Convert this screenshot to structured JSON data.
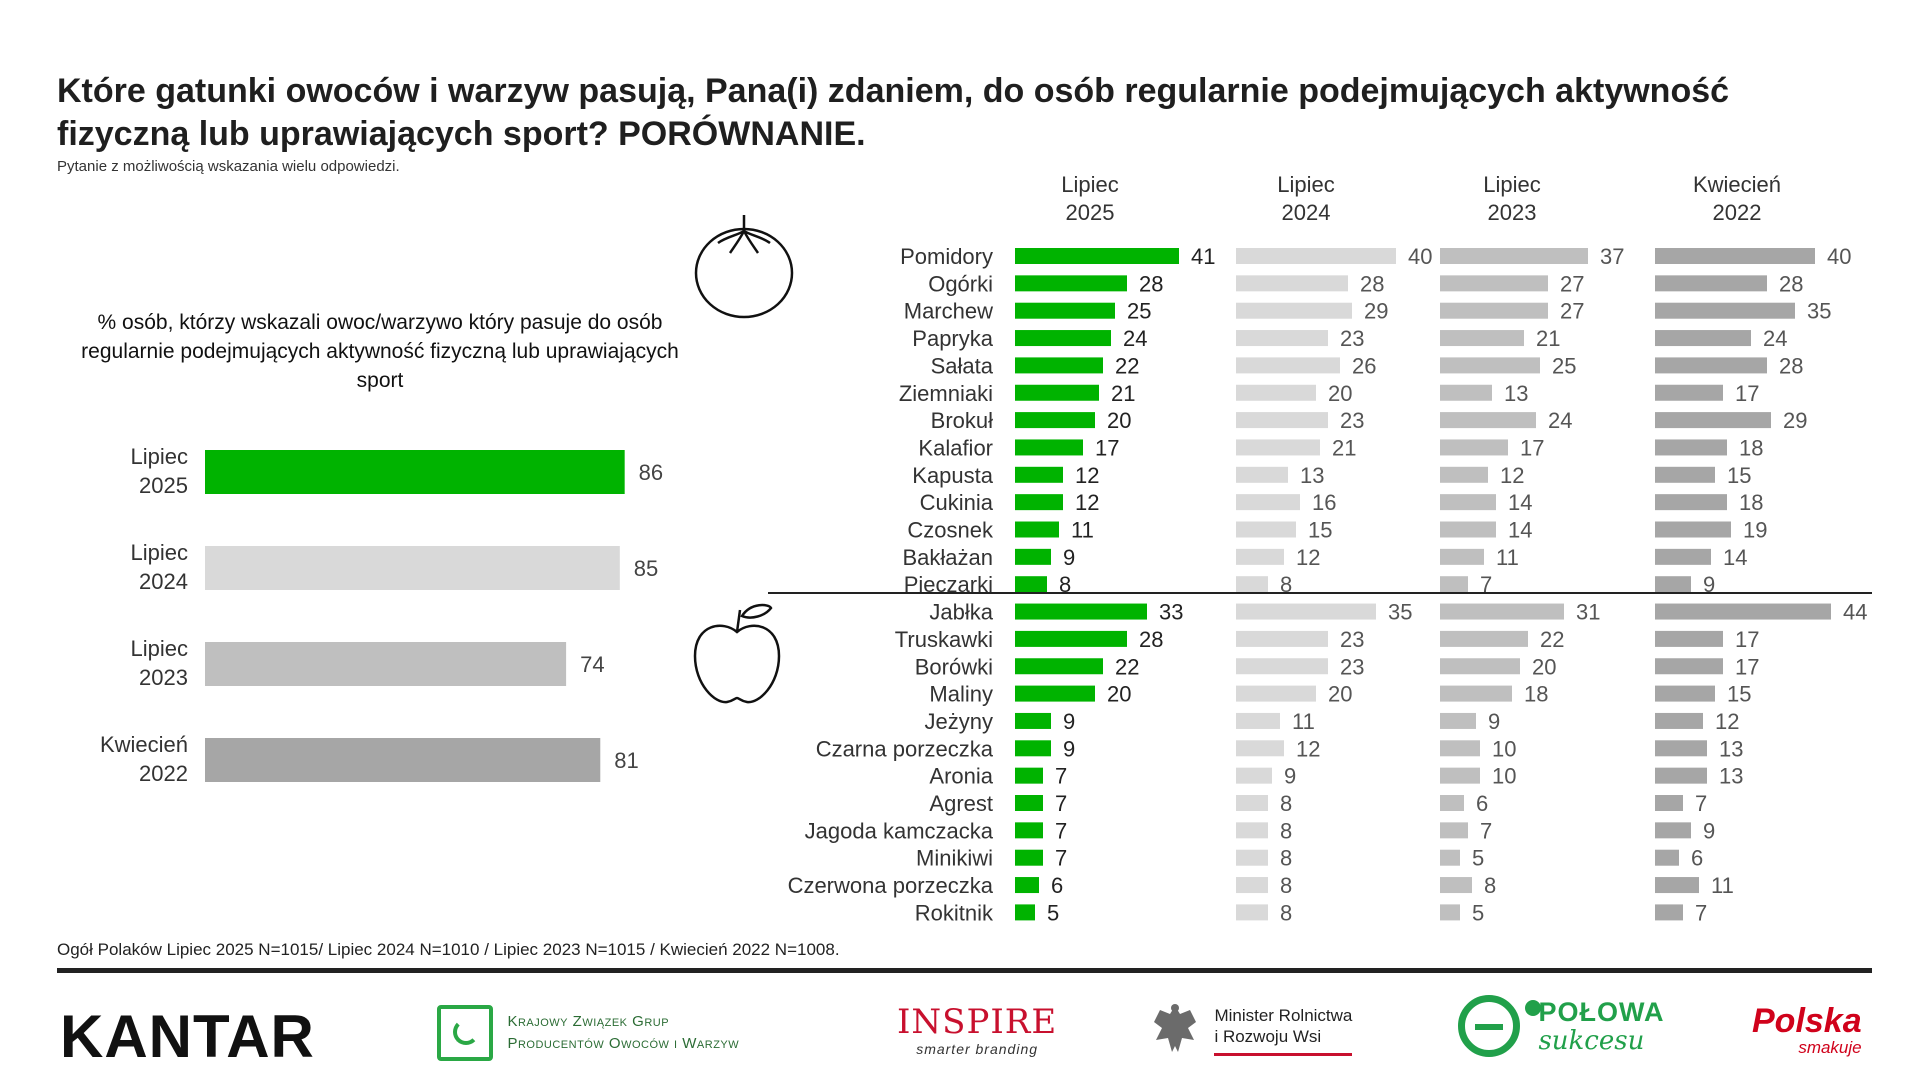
{
  "title": "Które gatunki owoców i warzyw pasują, Pana(i) zdaniem, do osób regularnie podejmujących aktywność fizyczną lub uprawiających sport? PORÓWNANIE.",
  "subtitle": "Pytanie z możliwością wskazania wielu odpowiedzi.",
  "left_description": "% osób, którzy wskazali owoc/warzywo który pasuje do osób regularnie podejmujących aktywność fizyczną lub uprawiających sport",
  "footnote": "Ogół Polaków Lipiec 2025 N=1015/ Lipiec 2024 N=1010 / Lipiec 2023 N=1015 / Kwiecień 2022 N=1008.",
  "colors": {
    "green": "#00b300",
    "light_gray": "#d9d9d9",
    "mid_gray": "#bfbfbf",
    "dark_gray": "#a6a6a6"
  },
  "icons": {
    "vegetables": "tomato-icon",
    "fruits": "apple-icon"
  },
  "logos": {
    "kantar": "KANTAR",
    "kzgp": [
      "Krajowy Związek Grup",
      "Producentów Owoców i Warzyw"
    ],
    "inspire": [
      "INSPIRE",
      "smarter branding"
    ],
    "minister": [
      "Minister Rolnictwa",
      "i Rozwoju Wsi"
    ],
    "polowa": [
      "POŁOWA",
      "sukcesu"
    ],
    "polska": [
      "Polska",
      "smakuje"
    ]
  },
  "chart_data": [
    {
      "type": "bar",
      "orientation": "horizontal",
      "categories": [
        "Lipiec\n2025",
        "Lipiec\n2024",
        "Lipiec\n2023",
        "Kwiecień\n2022"
      ],
      "values": [
        86,
        85,
        74,
        81
      ],
      "colors": [
        "#00b300",
        "#d9d9d9",
        "#bfbfbf",
        "#a6a6a6"
      ],
      "xlim": [
        0,
        100
      ],
      "grid": false
    },
    {
      "type": "bar",
      "orientation": "horizontal",
      "panels": [
        "Lipiec\n2025",
        "Lipiec\n2024",
        "Lipiec\n2023",
        "Kwiecień\n2022"
      ],
      "panel_colors": [
        "#00b300",
        "#d9d9d9",
        "#bfbfbf",
        "#a6a6a6"
      ],
      "grid": false,
      "groups": [
        {
          "name": "vegetables",
          "categories": [
            "Pomidory",
            "Ogórki",
            "Marchew",
            "Papryka",
            "Sałata",
            "Ziemniaki",
            "Brokuł",
            "Kalafior",
            "Kapusta",
            "Cukinia",
            "Czosnek",
            "Bakłażan",
            "Pieczarki"
          ],
          "series": [
            {
              "values": [
                41,
                28,
                25,
                24,
                22,
                21,
                20,
                17,
                12,
                12,
                11,
                9,
                8
              ]
            },
            {
              "values": [
                40,
                28,
                29,
                23,
                26,
                20,
                23,
                21,
                13,
                16,
                15,
                12,
                8
              ]
            },
            {
              "values": [
                37,
                27,
                27,
                21,
                25,
                13,
                24,
                17,
                12,
                14,
                14,
                11,
                7
              ]
            },
            {
              "values": [
                40,
                28,
                35,
                24,
                28,
                17,
                29,
                18,
                15,
                18,
                19,
                14,
                9
              ]
            }
          ]
        },
        {
          "name": "fruits",
          "categories": [
            "Jabłka",
            "Truskawki",
            "Borówki",
            "Maliny",
            "Jeżyny",
            "Czarna porzeczka",
            "Aronia",
            "Agrest",
            "Jagoda kamczacka",
            "Minikiwi",
            "Czerwona porzeczka",
            "Rokitnik"
          ],
          "series": [
            {
              "values": [
                33,
                28,
                22,
                20,
                9,
                9,
                7,
                7,
                7,
                7,
                6,
                5
              ]
            },
            {
              "values": [
                35,
                23,
                23,
                20,
                11,
                12,
                9,
                8,
                8,
                8,
                8,
                8
              ]
            },
            {
              "values": [
                31,
                22,
                20,
                18,
                9,
                10,
                10,
                6,
                7,
                5,
                8,
                5
              ]
            },
            {
              "values": [
                44,
                17,
                17,
                15,
                12,
                13,
                13,
                7,
                9,
                6,
                11,
                7
              ]
            }
          ]
        }
      ]
    }
  ]
}
